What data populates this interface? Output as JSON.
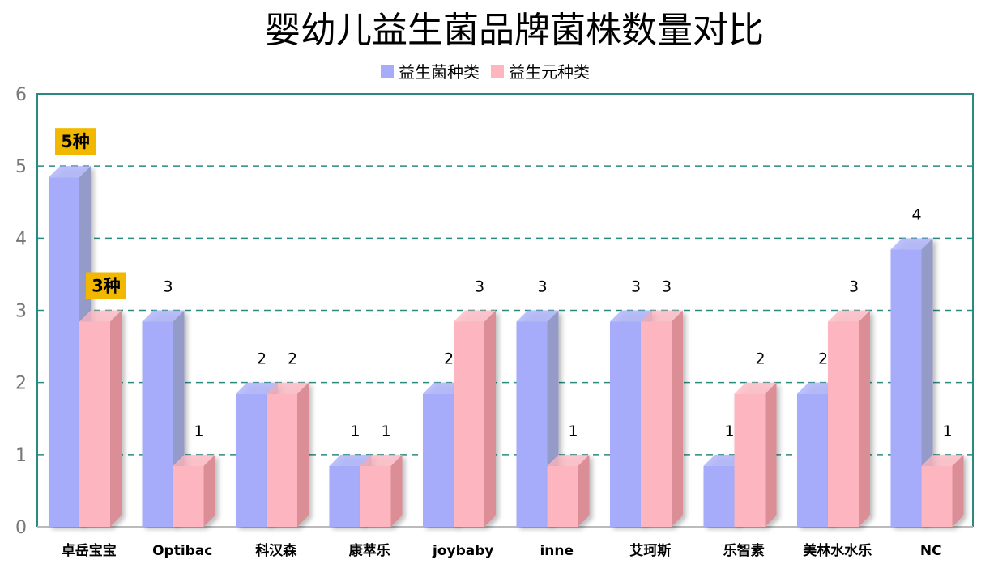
{
  "chart_data": {
    "type": "bar",
    "title": "婴幼儿益生菌品牌菌株数量对比",
    "categories": [
      "卓岳宝宝",
      "Optibac",
      "科汉森",
      "康萃乐",
      "joybaby",
      "inne",
      "艾珂斯",
      "乐智素",
      "美林水水乐",
      "NC"
    ],
    "series": [
      {
        "name": "益生菌种类",
        "values": [
          5,
          3,
          2,
          1,
          2,
          3,
          3,
          1,
          2,
          4
        ],
        "color": "#a6acf9",
        "side_color": "#959bc8"
      },
      {
        "name": "益生元种类",
        "values": [
          3,
          1,
          2,
          1,
          3,
          1,
          3,
          2,
          3,
          1
        ],
        "color": "#fdb5c0",
        "side_color": "#db8e96"
      }
    ],
    "highlight_labels": [
      {
        "category": "卓岳宝宝",
        "series": "益生菌种类",
        "text": "5种"
      },
      {
        "category": "卓岳宝宝",
        "series": "益生元种类",
        "text": "3种"
      }
    ],
    "highlight_color": "#f2b800",
    "ylim": [
      0,
      6
    ],
    "yticks": [
      0,
      1,
      2,
      3,
      4,
      5,
      6
    ],
    "grid": true,
    "grid_color": "#2a8a80",
    "legend_position": "top",
    "style": "3d"
  }
}
